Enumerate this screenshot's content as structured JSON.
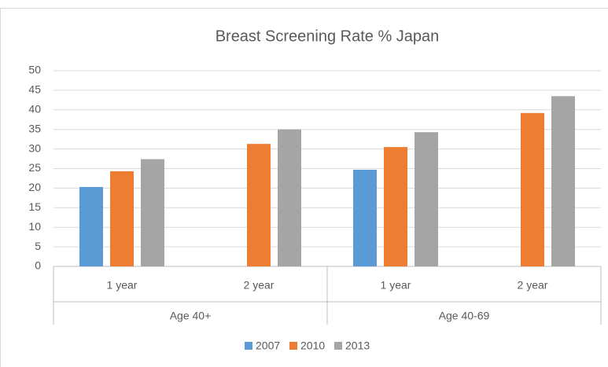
{
  "chart_data": {
    "type": "bar",
    "title": "Breast Screening Rate % Japan",
    "categories": [
      "1 year",
      "2 year",
      "1 year",
      "2 year"
    ],
    "groups": [
      "Age 40+",
      "Age 40-69"
    ],
    "series": [
      {
        "name": "2007",
        "color": "#5b9bd5",
        "values": [
          20.3,
          null,
          24.7,
          null
        ]
      },
      {
        "name": "2010",
        "color": "#ed7d31",
        "values": [
          24.3,
          31.3,
          30.5,
          39.2
        ]
      },
      {
        "name": "2013",
        "color": "#a5a5a5",
        "values": [
          27.4,
          35.0,
          34.3,
          43.5
        ]
      }
    ],
    "ylim": [
      0,
      50
    ],
    "yticks": [
      0,
      5,
      10,
      15,
      20,
      25,
      30,
      35,
      40,
      45,
      50
    ],
    "grid": true,
    "legend": "bottom"
  }
}
